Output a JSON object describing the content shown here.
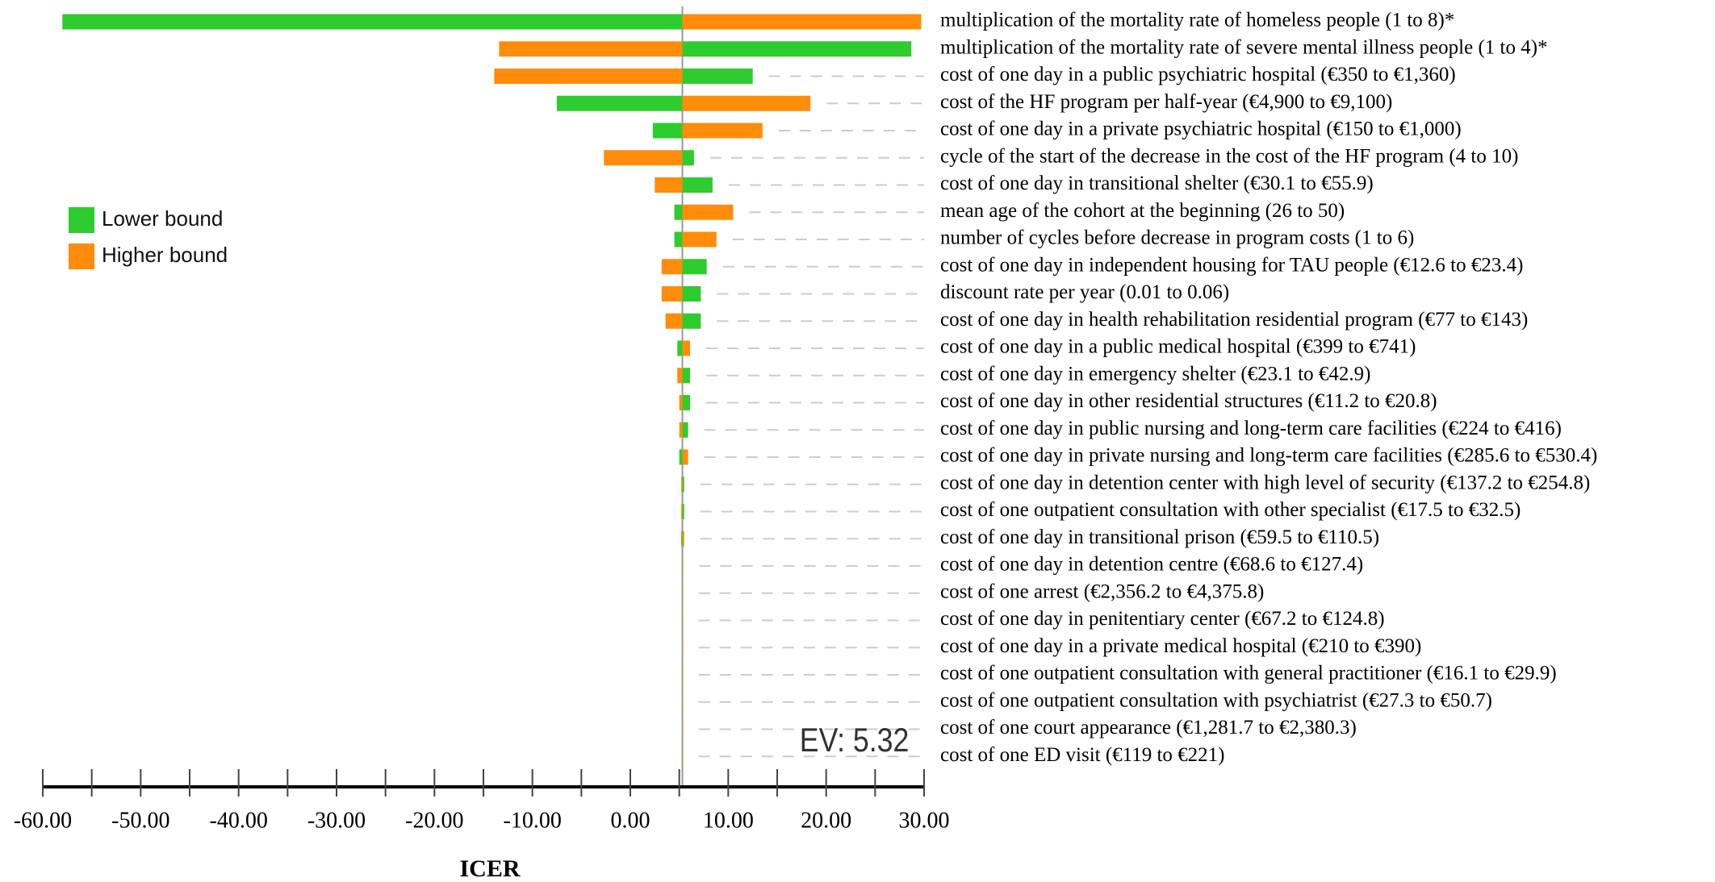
{
  "chart_data": {
    "type": "tornado",
    "x_label": "ICER",
    "ev": {
      "value": 5.32,
      "label": "EV: 5.32"
    },
    "xlim": [
      -60,
      30
    ],
    "xticks": [
      {
        "value": -60,
        "label": "-60.00"
      },
      {
        "value": -50,
        "label": "-50.00"
      },
      {
        "value": -40,
        "label": "-40.00"
      },
      {
        "value": -30,
        "label": "-30.00"
      },
      {
        "value": -20,
        "label": "-20.00"
      },
      {
        "value": -10,
        "label": "-10.00"
      },
      {
        "value": 0,
        "label": "0.00"
      },
      {
        "value": 10,
        "label": "10.00"
      },
      {
        "value": 20,
        "label": "20.00"
      },
      {
        "value": 30,
        "label": "30.00"
      }
    ],
    "categories": [
      "multiplication of the mortality rate of homeless people (1 to 8)*",
      "multiplication of the mortality rate of severe mental illness people (1 to 4)*",
      "cost of one day in a public psychiatric hospital (€350 to €1,360)",
      "cost of the HF program per half-year (€4,900 to €9,100)",
      "cost of one day in a private psychiatric hospital (€150 to €1,000)",
      "cycle of the start of the decrease in the cost of the HF program (4 to 10)",
      "cost of one day in transitional shelter (€30.1 to €55.9)",
      "mean age of the cohort at the beginning (26 to 50)",
      "number of cycles before decrease in program costs (1 to 6)",
      "cost of one day in independent housing for TAU people (€12.6 to €23.4)",
      "discount rate per year (0.01 to 0.06)",
      "cost of one day in health rehabilitation residential program (€77 to €143)",
      "cost of one day in a public medical hospital (€399 to €741)",
      "cost of one day in emergency shelter (€23.1 to €42.9)",
      "cost of one day in other residential structures (€11.2 to €20.8)",
      "cost of one day in public nursing and long-term care facilities (€224 to €416)",
      "cost of one day in private nursing and long-term care facilities (€285.6 to €530.4)",
      "cost of one day in detention center with high level of security (€137.2 to €254.8)",
      "cost of one outpatient consultation with other specialist (€17.5 to €32.5)",
      "cost of one day in transitional prison (€59.5 to €110.5)",
      "cost of one day in detention centre (€68.6 to €127.4)",
      "cost of one arrest (€2,356.2 to €4,375.8)",
      "cost of one day in penitentiary center (€67.2 to €124.8)",
      "cost of one day in a private medical hospital (€210 to €390)",
      "cost of one outpatient consultation with general practitioner (€16.1 to €29.9)",
      "cost of one outpatient consultation with psychiatrist (€27.3 to €50.7)",
      "cost of one court appearance (€1,281.7 to €2,380.3)",
      "cost of one ED visit (€119 to €221)"
    ],
    "series": [
      {
        "name": "Lower bound",
        "color": "#2ecc2e",
        "values": [
          -58.0,
          28.7,
          12.5,
          -7.5,
          2.3,
          6.5,
          8.4,
          4.5,
          4.5,
          7.8,
          7.2,
          7.2,
          4.8,
          6.1,
          6.1,
          5.9,
          5.0,
          5.5,
          5.5,
          5.2,
          5.4,
          5.33,
          5.33,
          5.33,
          5.33,
          5.33,
          5.33,
          5.33
        ]
      },
      {
        "name": "Higher bound",
        "color": "#ff8c0a",
        "values": [
          29.7,
          -13.4,
          -13.9,
          18.4,
          13.5,
          -2.7,
          2.5,
          10.5,
          8.8,
          3.2,
          3.2,
          3.6,
          6.1,
          4.8,
          5.0,
          5.0,
          5.9,
          5.2,
          5.2,
          5.5,
          5.3,
          5.31,
          5.31,
          5.31,
          5.31,
          5.31,
          5.31,
          5.31
        ]
      }
    ]
  }
}
